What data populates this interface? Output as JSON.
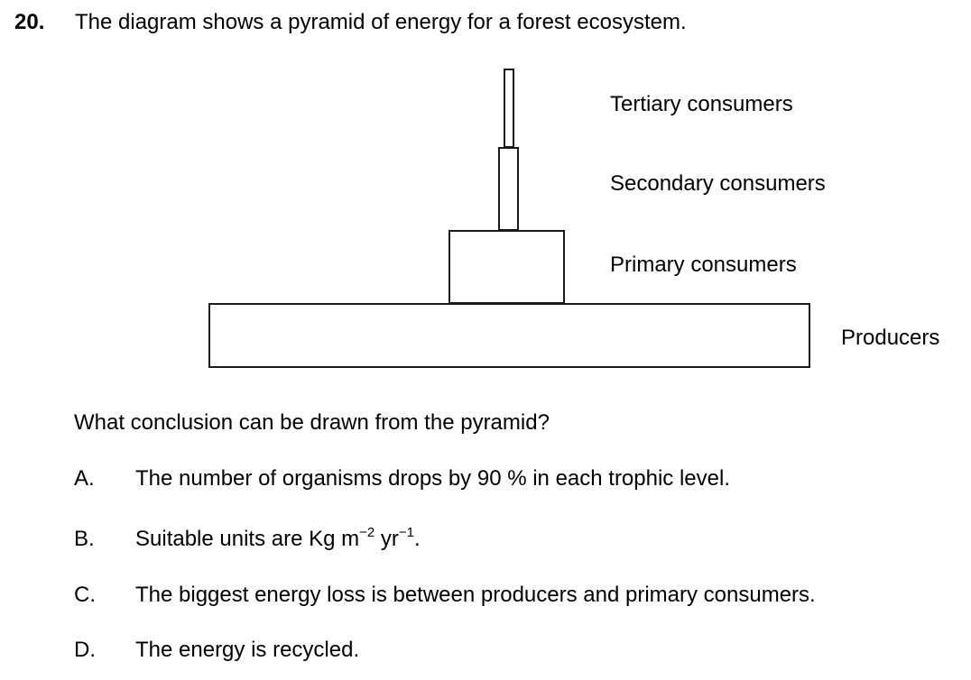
{
  "question": {
    "number": "20.",
    "stem": "The diagram shows a pyramid of energy for a forest ecosystem."
  },
  "pyramid": {
    "levels": {
      "tertiary": "Tertiary consumers",
      "secondary": "Secondary consumers",
      "primary": "Primary consumers",
      "producers": "Producers"
    }
  },
  "prompt": "What conclusion can be drawn from the pyramid?",
  "options": {
    "a": {
      "letter": "A.",
      "text": "The number of organisms drops by 90 % in each trophic level."
    },
    "b": {
      "letter": "B.",
      "text_before": "Suitable units are Kg m",
      "exp1": "−2",
      "mid": " yr",
      "exp2": "−1",
      "end": "."
    },
    "c": {
      "letter": "C.",
      "text": "The biggest energy loss is between producers and primary consumers."
    },
    "d": {
      "letter": "D.",
      "text": "The energy is recycled."
    }
  }
}
